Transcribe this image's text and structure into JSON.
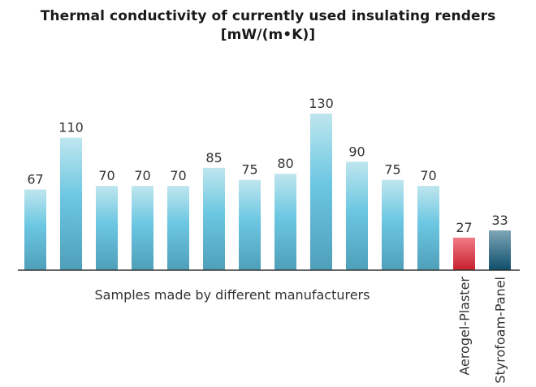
{
  "chart_data": {
    "type": "bar",
    "title": "Thermal conductivity of currently used insulating renders",
    "unit": "[mW/(m•K)]",
    "xlabel": "Samples made by different manufacturers",
    "ylabel": "",
    "ylim": [
      0,
      150
    ],
    "grid": false,
    "legend": "none",
    "categories": [
      "",
      "",
      "",
      "",
      "",
      "",
      "",
      "",
      "",
      "",
      "",
      "",
      "Aerogel-Plaster",
      "Styrofoam-Panel"
    ],
    "values": [
      67,
      110,
      70,
      70,
      70,
      85,
      75,
      80,
      130,
      90,
      75,
      70,
      27,
      33
    ],
    "bar_styles": [
      "sample",
      "sample",
      "sample",
      "sample",
      "sample",
      "sample",
      "sample",
      "sample",
      "sample",
      "sample",
      "sample",
      "sample",
      "aerogel",
      "styrofoam"
    ],
    "colors": {
      "sample_light": "#bfe6ee",
      "sample_mid": "#6cc7e2",
      "sample_dark": "#4f9fb9",
      "aerogel_light": "#f07b86",
      "aerogel_dark": "#c8202f",
      "styrofoam_light": "#7fa6b8",
      "styrofoam_dark": "#0d4e6b",
      "axis": "#333333"
    }
  }
}
